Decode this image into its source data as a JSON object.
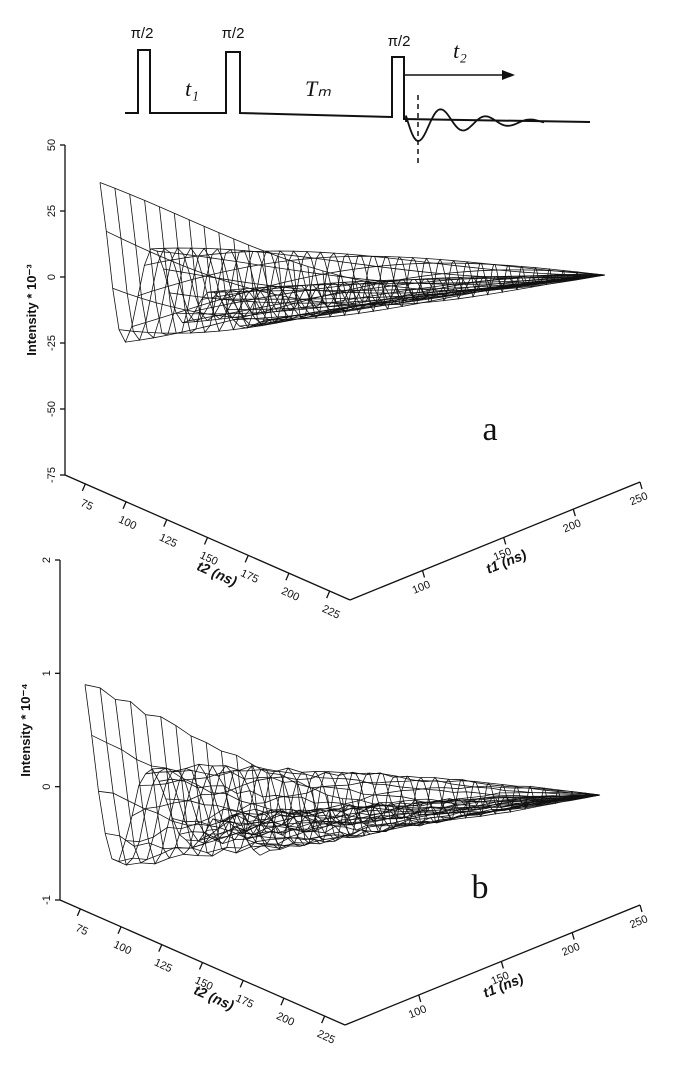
{
  "pulse_sequence": {
    "pulses": [
      "π/2",
      "π/2",
      "π/2"
    ],
    "t1": "t₁",
    "tm": "Tₘ",
    "t2": "t₂"
  },
  "panels": [
    {
      "label": "a",
      "z_axis": {
        "title": "Intensity * 10⁻³",
        "ticks": [
          "50",
          "25",
          "0",
          "-25",
          "-50",
          "-75"
        ]
      },
      "t2_axis": {
        "title": "t2 (ns)",
        "ticks": [
          "75",
          "100",
          "125",
          "150",
          "175",
          "200",
          "225"
        ]
      },
      "t1_axis": {
        "title": "t1 (ns)",
        "ticks": [
          "100",
          "150",
          "200",
          "250"
        ]
      }
    },
    {
      "label": "b",
      "z_axis": {
        "title": "Intensity * 10⁻⁴",
        "ticks": [
          "2",
          "1",
          "0",
          "-1"
        ]
      },
      "t2_axis": {
        "title": "t2 (ns)",
        "ticks": [
          "75",
          "100",
          "125",
          "150",
          "175",
          "200",
          "225"
        ]
      },
      "t1_axis": {
        "title": "t1 (ns)",
        "ticks": [
          "100",
          "150",
          "200",
          "250"
        ]
      }
    }
  ]
}
